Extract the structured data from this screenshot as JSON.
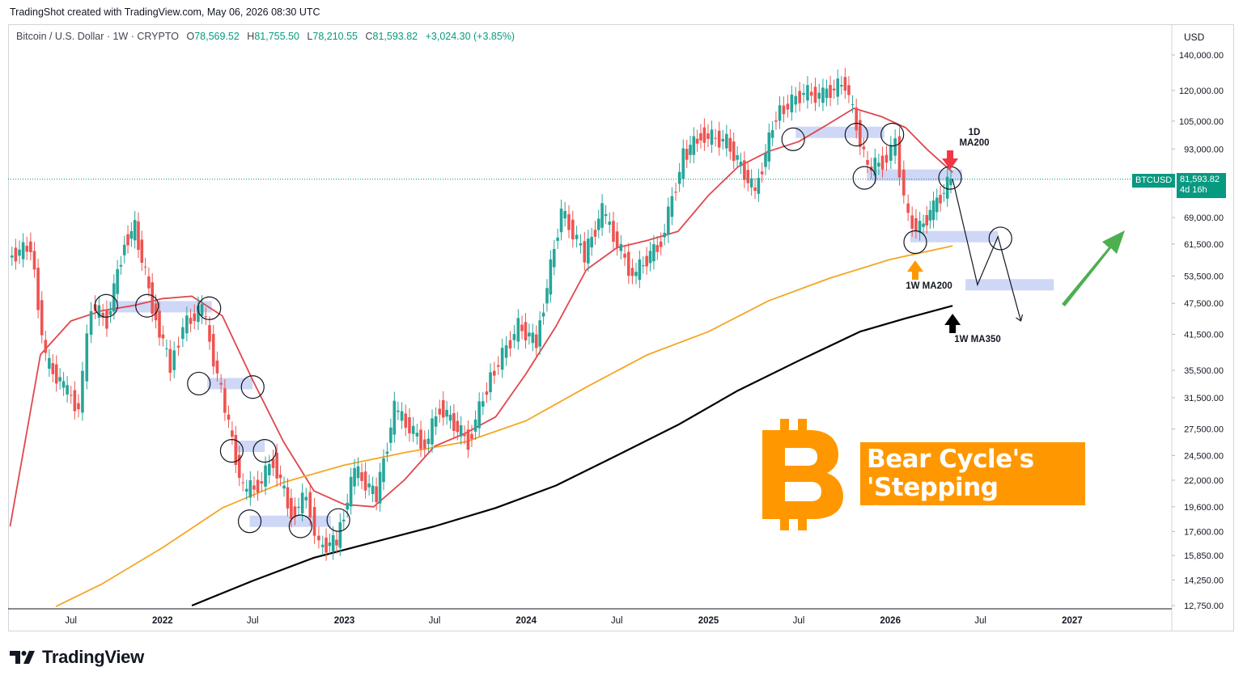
{
  "credit": "TradingShot created with TradingView.com, May 06, 2026 08:30 UTC",
  "legend": {
    "symbol": "Bitcoin / U.S. Dollar · 1W · CRYPTO",
    "open_label": "O",
    "open": "78,569.52",
    "high_label": "H",
    "high": "81,755.50",
    "low_label": "L",
    "low": "78,210.55",
    "close_label": "C",
    "close": "81,593.82",
    "change": "+3,024.30 (+3.85%)"
  },
  "currency": "USD",
  "price_tag": {
    "ticker": "BTCUSD",
    "price": "81,593.82",
    "countdown": "4d 16h"
  },
  "annotations": {
    "ma_1d": [
      "1D",
      "MA200"
    ],
    "ma_1w_200": "1W MA200",
    "ma_1w_350": "1W MA350",
    "banner_line1": "Bear Cycle's",
    "banner_line2": "'Stepping Stones'"
  },
  "brand": "TradingView",
  "colors": {
    "up": "#26a69a",
    "down": "#ef5350",
    "ma_1d_200": "#e0474c",
    "ma_1w_200": "#f5a623",
    "ma_1w_350": "#000000",
    "accent": "#ff9800",
    "support_zone": "#c5d0f5",
    "last_price": "#089981"
  },
  "chart_data": {
    "type": "line",
    "title": "Bitcoin / U.S. Dollar · 1W · CRYPTO",
    "ylabel": "USD",
    "y_scale": "log",
    "ylim": [
      12750,
      140000
    ],
    "y_ticks": [
      "140,000.00",
      "120,000.00",
      "105,000.00",
      "93,000.00",
      "81,593.82",
      "69,000.00",
      "61,500.00",
      "53,500.00",
      "47,500.00",
      "41,500.00",
      "35,500.00",
      "31,500.00",
      "27,500.00",
      "24,500.00",
      "22,000.00",
      "19,600.00",
      "17,600.00",
      "15,850.00",
      "14,250.00",
      "12,750.00"
    ],
    "x_ticks": [
      "Jul",
      "2022",
      "Jul",
      "2023",
      "Jul",
      "2024",
      "Jul",
      "2025",
      "Jul",
      "2026",
      "Jul",
      "2027"
    ],
    "x_tick_dates": [
      "2021-07-01",
      "2022-01-01",
      "2022-07-01",
      "2023-01-01",
      "2023-07-01",
      "2024-01-01",
      "2024-07-01",
      "2025-01-01",
      "2025-07-01",
      "2026-01-01",
      "2026-07-01",
      "2027-01-01"
    ],
    "series": [
      {
        "name": "BTCUSD",
        "points": [
          [
            "2021-03-01",
            58000
          ],
          [
            "2021-04-15",
            61000
          ],
          [
            "2021-05-15",
            37000
          ],
          [
            "2021-06-20",
            33000
          ],
          [
            "2021-07-20",
            30000
          ],
          [
            "2021-08-15",
            47000
          ],
          [
            "2021-09-15",
            44000
          ],
          [
            "2021-10-20",
            62000
          ],
          [
            "2021-11-10",
            66000
          ],
          [
            "2021-12-15",
            47000
          ],
          [
            "2022-01-20",
            36000
          ],
          [
            "2022-02-15",
            43000
          ],
          [
            "2022-03-25",
            46500
          ],
          [
            "2022-05-10",
            30000
          ],
          [
            "2022-06-15",
            21000
          ],
          [
            "2022-07-15",
            21500
          ],
          [
            "2022-08-15",
            24000
          ],
          [
            "2022-09-20",
            19000
          ],
          [
            "2022-10-20",
            20500
          ],
          [
            "2022-11-15",
            16500
          ],
          [
            "2022-12-20",
            16800
          ],
          [
            "2023-01-25",
            23000
          ],
          [
            "2023-03-10",
            20500
          ],
          [
            "2023-04-15",
            30000
          ],
          [
            "2023-06-15",
            25500
          ],
          [
            "2023-07-15",
            30300
          ],
          [
            "2023-09-10",
            26000
          ],
          [
            "2023-10-25",
            34500
          ],
          [
            "2023-12-20",
            43000
          ],
          [
            "2024-01-25",
            40000
          ],
          [
            "2024-03-15",
            71000
          ],
          [
            "2024-05-01",
            58500
          ],
          [
            "2024-06-05",
            71000
          ],
          [
            "2024-08-05",
            53500
          ],
          [
            "2024-10-01",
            62000
          ],
          [
            "2024-11-15",
            90000
          ],
          [
            "2024-12-20",
            99000
          ],
          [
            "2025-02-10",
            96000
          ],
          [
            "2025-04-08",
            77000
          ],
          [
            "2025-05-20",
            108000
          ],
          [
            "2025-07-15",
            119000
          ],
          [
            "2025-08-15",
            117000
          ],
          [
            "2025-10-06",
            124000
          ],
          [
            "2025-11-20",
            85000
          ],
          [
            "2025-12-20",
            88000
          ],
          [
            "2026-01-15",
            95000
          ],
          [
            "2026-02-10",
            68000
          ],
          [
            "2026-03-05",
            66000
          ],
          [
            "2026-04-01",
            72000
          ],
          [
            "2026-05-06",
            81593.82
          ]
        ]
      },
      {
        "name": "1D MA200",
        "points": [
          [
            "2021-03-01",
            18000
          ],
          [
            "2021-05-01",
            38000
          ],
          [
            "2021-07-01",
            44000
          ],
          [
            "2021-09-01",
            46000
          ],
          [
            "2021-11-01",
            47000
          ],
          [
            "2022-01-01",
            48500
          ],
          [
            "2022-03-01",
            49000
          ],
          [
            "2022-05-01",
            45000
          ],
          [
            "2022-07-01",
            34000
          ],
          [
            "2022-09-01",
            26000
          ],
          [
            "2022-11-01",
            21000
          ],
          [
            "2023-01-01",
            19800
          ],
          [
            "2023-03-01",
            19600
          ],
          [
            "2023-05-01",
            22000
          ],
          [
            "2023-07-01",
            25500
          ],
          [
            "2023-09-01",
            27000
          ],
          [
            "2023-11-01",
            29000
          ],
          [
            "2024-01-01",
            35000
          ],
          [
            "2024-03-01",
            43000
          ],
          [
            "2024-05-01",
            55000
          ],
          [
            "2024-07-01",
            60500
          ],
          [
            "2024-09-01",
            62500
          ],
          [
            "2024-11-01",
            65000
          ],
          [
            "2025-01-01",
            76000
          ],
          [
            "2025-03-01",
            86000
          ],
          [
            "2025-05-01",
            92000
          ],
          [
            "2025-07-01",
            96000
          ],
          [
            "2025-09-01",
            104000
          ],
          [
            "2025-10-20",
            111000
          ],
          [
            "2025-12-15",
            107000
          ],
          [
            "2026-02-01",
            102000
          ],
          [
            "2026-03-15",
            93000
          ],
          [
            "2026-05-06",
            84000
          ]
        ]
      },
      {
        "name": "1W MA200",
        "points": [
          [
            "2021-06-01",
            12700
          ],
          [
            "2021-09-01",
            14000
          ],
          [
            "2022-01-01",
            16400
          ],
          [
            "2022-05-01",
            19500
          ],
          [
            "2022-09-01",
            21800
          ],
          [
            "2023-01-01",
            23500
          ],
          [
            "2023-05-01",
            24800
          ],
          [
            "2023-09-01",
            26000
          ],
          [
            "2024-01-01",
            28500
          ],
          [
            "2024-05-01",
            33000
          ],
          [
            "2024-09-01",
            38000
          ],
          [
            "2025-01-01",
            42000
          ],
          [
            "2025-05-01",
            48000
          ],
          [
            "2025-09-01",
            53000
          ],
          [
            "2026-01-01",
            57500
          ],
          [
            "2026-05-06",
            61000
          ]
        ]
      },
      {
        "name": "1W MA350",
        "points": [
          [
            "2022-03-01",
            12750
          ],
          [
            "2022-07-01",
            14200
          ],
          [
            "2022-11-01",
            15700
          ],
          [
            "2023-03-01",
            16800
          ],
          [
            "2023-07-01",
            18000
          ],
          [
            "2023-11-01",
            19500
          ],
          [
            "2024-03-01",
            21500
          ],
          [
            "2024-07-01",
            24500
          ],
          [
            "2024-11-01",
            28000
          ],
          [
            "2025-03-01",
            32500
          ],
          [
            "2025-07-01",
            37000
          ],
          [
            "2025-11-01",
            42000
          ],
          [
            "2026-02-01",
            44500
          ],
          [
            "2026-05-06",
            47000
          ]
        ]
      }
    ],
    "support_zones": [
      {
        "from": "2021-09-15",
        "to": "2022-04-10",
        "price": 46800
      },
      {
        "from": "2022-04-01",
        "to": "2022-07-01",
        "price": 33500
      },
      {
        "from": "2022-05-25",
        "to": "2022-07-25",
        "price": 25500
      },
      {
        "from": "2022-06-25",
        "to": "2022-12-05",
        "price": 18400
      },
      {
        "from": "2025-06-25",
        "to": "2025-12-20",
        "price": 100000
      },
      {
        "from": "2025-11-15",
        "to": "2026-05-25",
        "price": 83000
      },
      {
        "from": "2026-02-10",
        "to": "2026-08-05",
        "price": 63500
      },
      {
        "from": "2026-06-01",
        "to": "2026-11-25",
        "price": 51500
      }
    ],
    "highlight_points": [
      [
        "2021-09-10",
        47000
      ],
      [
        "2021-12-01",
        47000
      ],
      [
        "2022-04-05",
        46500
      ],
      [
        "2022-03-15",
        33500
      ],
      [
        "2022-07-01",
        33000
      ],
      [
        "2022-05-20",
        25000
      ],
      [
        "2022-07-25",
        25000
      ],
      [
        "2022-06-25",
        18400
      ],
      [
        "2022-10-05",
        18000
      ],
      [
        "2022-12-20",
        18500
      ],
      [
        "2025-06-20",
        97000
      ],
      [
        "2025-10-25",
        99000
      ],
      [
        "2026-01-05",
        99000
      ],
      [
        "2025-11-10",
        82000
      ],
      [
        "2026-05-01",
        82000
      ],
      [
        "2026-02-20",
        62000
      ],
      [
        "2026-08-10",
        63000
      ]
    ],
    "projection": [
      [
        "2026-05-06",
        81593.82
      ],
      [
        "2026-06-25",
        51500
      ],
      [
        "2026-08-05",
        63500
      ],
      [
        "2026-09-20",
        44000
      ]
    ],
    "last_price": 81593.82
  }
}
